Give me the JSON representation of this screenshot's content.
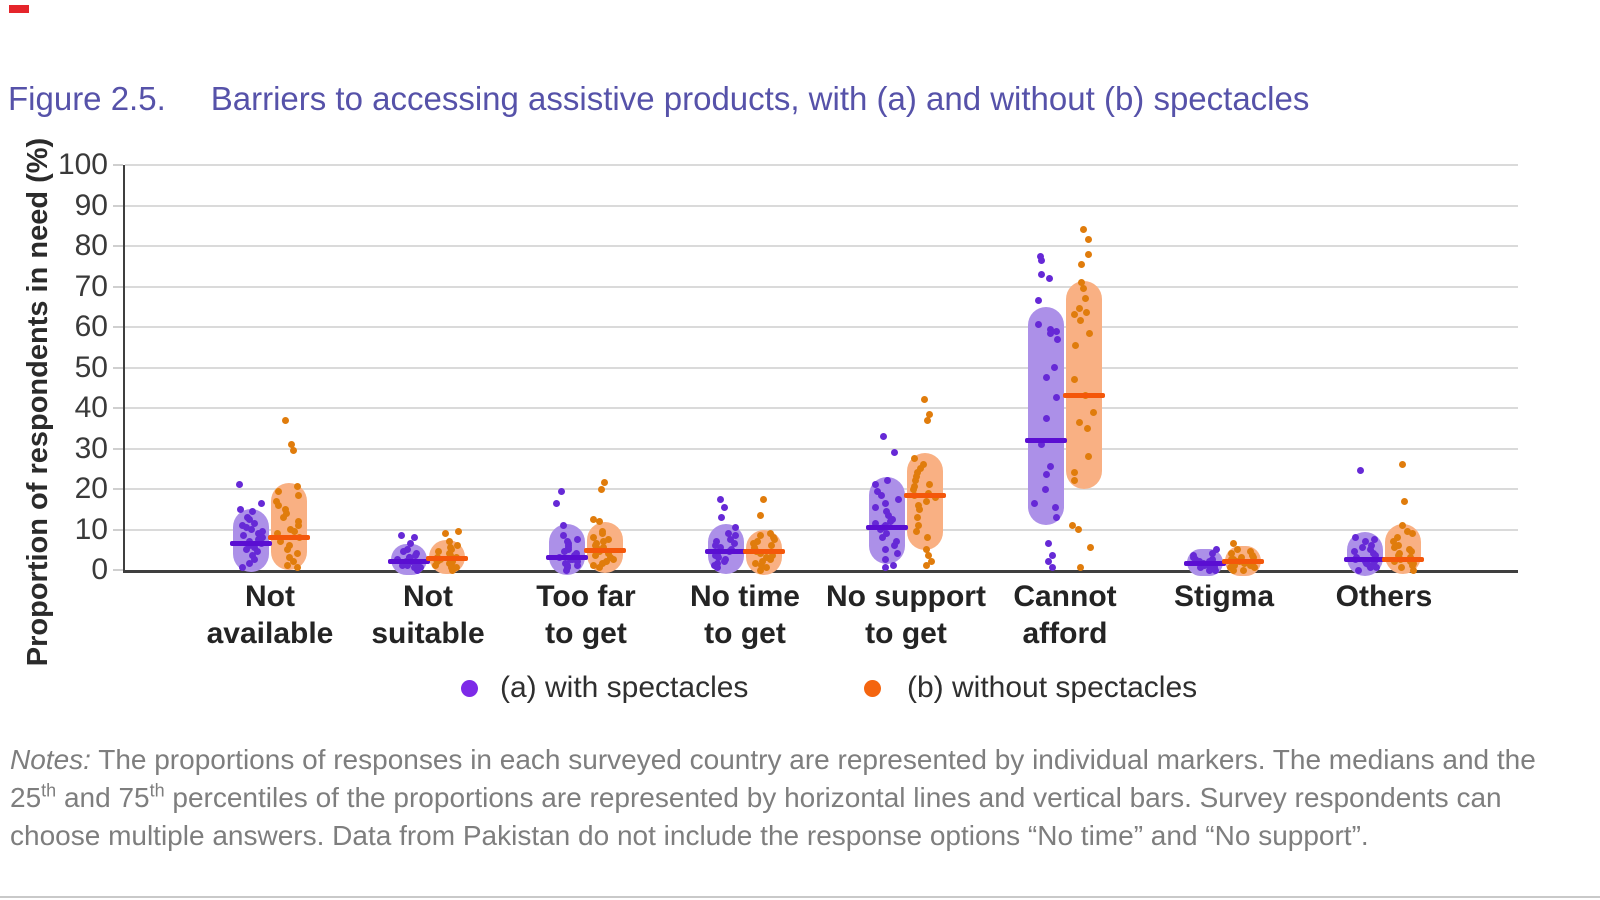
{
  "page": {
    "figure_label": "Figure 2.5.",
    "figure_title": "Barriers to accessing assistive products, with (a) and without (b) spectacles",
    "title_color": "#5652a9",
    "page_mark_color": "#e5252b"
  },
  "chart_data": {
    "type": "scatter",
    "subtype": "jittered strip plot with 25th-75th percentile bars and median lines",
    "title": "Barriers to accessing assistive products, with (a) and without (b) spectacles",
    "xlabel": "",
    "ylabel": "Proportion of respondents in need (%)",
    "ylim": [
      0,
      100
    ],
    "yticks": [
      0,
      10,
      20,
      30,
      40,
      50,
      60,
      70,
      80,
      90,
      100
    ],
    "grid": "horizontal gridlines every 10%",
    "legend_position": "bottom center",
    "categories": [
      "Not\navailable",
      "Not\nsuitable",
      "Too far\nto get",
      "No time\nto get",
      "No support\nto get",
      "Cannot\nafford",
      "Stigma",
      "Others"
    ],
    "series": [
      {
        "name": "(a) with spectacles",
        "legend_dot_color": "#7d2ae8",
        "marker_color": "#6629d6",
        "bar_fill": "#ac90e8",
        "median_color": "#5a0ed2",
        "stats": [
          {
            "q1": 1.5,
            "median": 6.5,
            "q3": 13
          },
          {
            "q1": 0.7,
            "median": 2.2,
            "q3": 4.5
          },
          {
            "q1": 0.8,
            "median": 3.0,
            "q3": 9.5
          },
          {
            "q1": 1.0,
            "median": 4.5,
            "q3": 9.5
          },
          {
            "q1": 3.5,
            "median": 10.5,
            "q3": 21
          },
          {
            "q1": 13,
            "median": 32,
            "q3": 63
          },
          {
            "q1": 0.4,
            "median": 1.6,
            "q3": 3.2
          },
          {
            "q1": 0.6,
            "median": 2.5,
            "q3": 7.5
          }
        ],
        "points": [
          [
            21,
            16.5,
            15,
            14.5,
            13,
            12.5,
            11.5,
            11,
            10.5,
            10,
            9.5,
            9,
            8.5,
            8,
            7.5,
            7,
            6.5,
            6,
            5.5,
            5,
            4.5,
            3.5,
            2.5,
            1.5,
            0.5
          ],
          [
            8.5,
            8,
            6.5,
            5,
            4.5,
            4,
            3.5,
            3,
            3,
            2.5,
            2.5,
            2,
            2,
            2,
            1.5,
            1.5,
            1,
            1,
            0.5,
            0.5,
            0
          ],
          [
            19.5,
            16.5,
            11,
            8.5,
            7.5,
            7,
            6.5,
            6,
            5.5,
            5,
            4.5,
            4,
            3.5,
            3,
            2.5,
            2.5,
            2,
            1.5,
            1,
            1,
            0.5,
            0
          ],
          [
            17.5,
            15.5,
            13,
            10.5,
            9,
            8.5,
            7.5,
            7,
            6.5,
            6,
            5.5,
            5,
            4.5,
            4,
            3.5,
            3,
            2.5,
            2,
            1.5,
            1,
            0.5
          ],
          [
            33,
            29,
            22,
            21,
            19.5,
            18.5,
            17.5,
            16.5,
            15.5,
            14.5,
            13.5,
            12.5,
            12,
            11.5,
            11,
            10.5,
            10,
            9,
            8,
            7,
            6,
            5,
            4,
            2.5,
            1,
            0.5
          ],
          [
            77.5,
            76.5,
            73,
            72,
            66.5,
            60.5,
            59.5,
            59,
            58.5,
            57,
            50,
            47.5,
            42.5,
            37.5,
            31,
            25.5,
            23.5,
            20,
            16.5,
            15.5,
            13,
            6.5,
            3.5,
            2,
            0.5
          ],
          [
            5,
            4,
            3.5,
            3,
            2.5,
            2.5,
            2,
            2,
            2,
            1.5,
            1.5,
            1.5,
            1,
            1,
            1,
            0.5,
            0.5,
            0.5,
            0,
            0
          ],
          [
            24.5,
            8,
            7.5,
            7,
            6,
            5.5,
            5,
            4.5,
            4,
            3.5,
            3,
            2.5,
            2.5,
            2,
            2,
            1.5,
            1,
            1,
            0.5,
            0.5,
            0
          ]
        ]
      },
      {
        "name": "(b) without spectacles",
        "legend_dot_color": "#f4650f",
        "marker_color": "#e07c0c",
        "bar_fill": "#f9b083",
        "median_color": "#f4570a",
        "stats": [
          {
            "q1": 2,
            "median": 8,
            "q3": 19.5
          },
          {
            "q1": 1,
            "median": 2.8,
            "q3": 5.5
          },
          {
            "q1": 1.2,
            "median": 4.7,
            "q3": 10
          },
          {
            "q1": 0.8,
            "median": 4.6,
            "q3": 8
          },
          {
            "q1": 7,
            "median": 18.5,
            "q3": 27
          },
          {
            "q1": 22,
            "median": 43,
            "q3": 69.5
          },
          {
            "q1": 0.6,
            "median": 2.2,
            "q3": 4
          },
          {
            "q1": 1,
            "median": 2.5,
            "q3": 9.5
          }
        ],
        "points": [
          [
            37,
            31,
            29.5,
            20.5,
            19.5,
            18.5,
            17,
            16,
            15,
            14,
            13,
            12,
            11,
            10,
            9.5,
            9,
            8,
            7,
            6,
            5,
            4,
            3,
            2,
            1,
            0.5
          ],
          [
            9.5,
            9,
            7,
            6,
            5.5,
            5,
            4.5,
            4,
            3.5,
            3,
            3,
            2.5,
            2.5,
            2,
            2,
            1.5,
            1.5,
            1,
            0.5,
            0.5,
            0
          ],
          [
            21.5,
            20,
            12.5,
            12,
            9.5,
            9,
            8,
            7.5,
            7,
            6.5,
            6,
            5.5,
            5,
            4.5,
            4,
            3.5,
            3,
            2.5,
            2,
            1.5,
            1,
            0.5
          ],
          [
            17.5,
            13.5,
            9,
            8.5,
            8,
            7.5,
            7,
            6.5,
            6,
            5.5,
            5,
            4.5,
            4,
            3.5,
            3,
            2.5,
            2,
            1.5,
            1,
            0.5,
            0
          ],
          [
            42,
            38.5,
            37,
            27.5,
            26,
            25,
            24,
            23,
            22,
            21,
            20.5,
            20,
            19,
            18.5,
            18,
            17,
            16,
            15,
            13,
            11,
            9.5,
            8,
            5,
            3.5,
            2,
            1
          ],
          [
            84,
            81.5,
            78,
            75.5,
            71,
            69.5,
            67,
            64.5,
            63.5,
            63,
            61.5,
            58.5,
            55.5,
            47,
            43,
            39,
            36.5,
            35,
            28,
            24,
            22,
            11,
            10,
            5.5,
            0.5
          ],
          [
            6.5,
            5,
            4.5,
            4,
            3.5,
            3,
            3,
            2.5,
            2.5,
            2,
            2,
            2,
            1.5,
            1.5,
            1,
            1,
            0.5,
            0.5,
            0,
            0
          ],
          [
            26,
            17,
            11,
            9.5,
            9,
            8,
            7,
            6,
            5.5,
            5,
            4.5,
            4,
            3.5,
            3,
            2.5,
            2,
            2,
            1.5,
            1,
            0.5,
            0
          ]
        ]
      }
    ]
  },
  "legend": {
    "item_a": "(a) with spectacles",
    "item_b": "(b) without spectacles"
  },
  "notes": {
    "label": "Notes:",
    "line1": " The proportions of responses in each surveyed country are represented by individual markers. The medians and the",
    "line2_parts": [
      "25",
      " and 75",
      " percentiles of the proportions are represented by horizontal lines and vertical bars. Survey respondents can"
    ],
    "sup": "th",
    "line3": "choose multiple answers. Data from Pakistan do not include the response options “No time” and “No support”."
  }
}
